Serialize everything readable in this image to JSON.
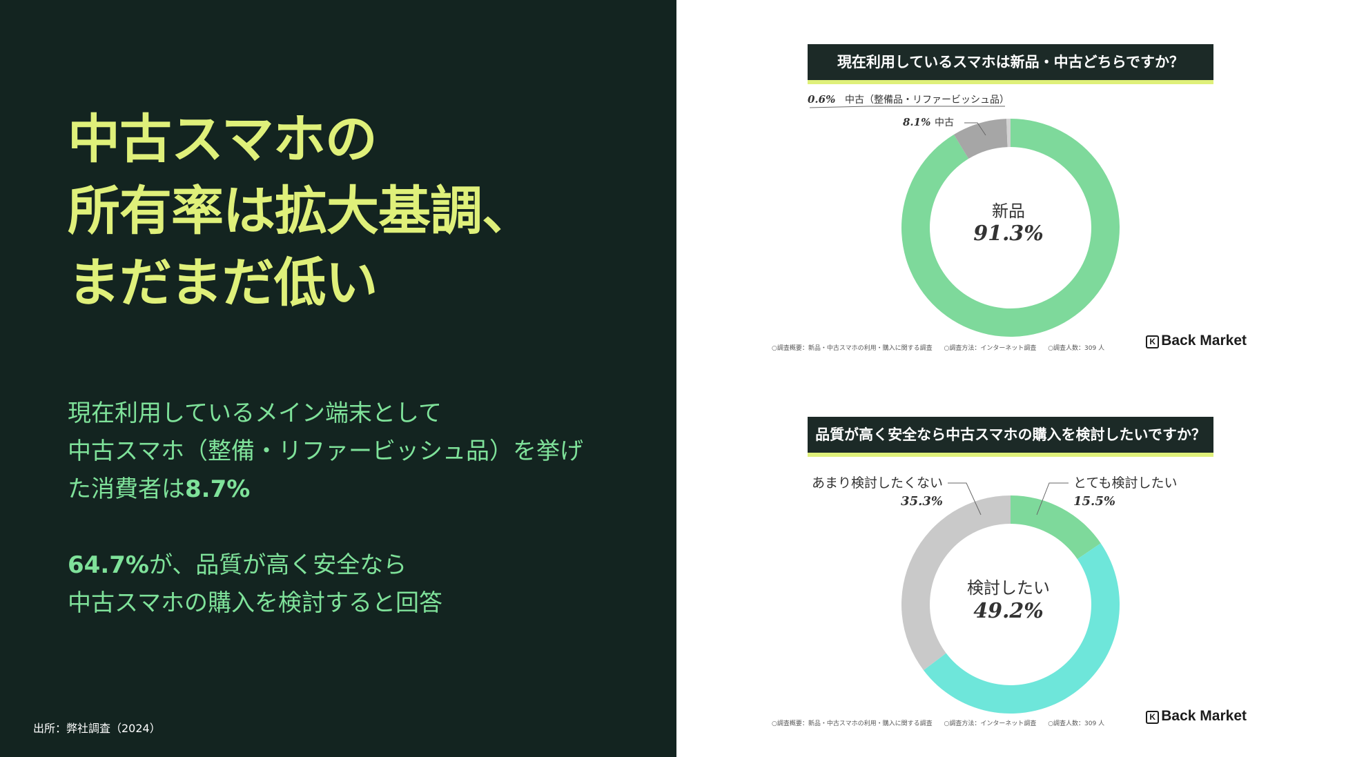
{
  "headline": [
    "中古スマホの",
    "所有率は拡大基調、",
    "まだまだ低い"
  ],
  "point1": {
    "lines": [
      "現在利用しているメイン端末として",
      "中古スマホ（整備・リファービッシュ品）を挙げ"
    ],
    "tail_prefix": "た消費者は",
    "tail_value": "8.7%"
  },
  "point2": {
    "value": "64.7%",
    "rest": "が、品質が高く安全なら",
    "line2": "中古スマホの購入を検討すると回答"
  },
  "source": "出所：弊社調査（2024）",
  "colors": {
    "bg_dark": "#132420",
    "headline": "#dff07a",
    "body": "#7fe29a"
  },
  "chart_data": [
    {
      "type": "pie",
      "title": "現在利用しているスマホは新品・中古どちらですか？",
      "center_label": "新品",
      "center_value": "91.3%",
      "slices": [
        {
          "label": "新品",
          "value": 91.3,
          "color": "#7ed99b"
        },
        {
          "label": "中古",
          "display": "8.1%",
          "value": 8.1,
          "color": "#a6a6a6"
        },
        {
          "label": "中古（整備品・リファービッシュ品）",
          "display": "0.6%",
          "value": 0.6,
          "color": "#d2d2d2"
        }
      ],
      "footer": [
        "○調査概要：新品・中古スマホの利用・購入に関する調査",
        "○調査方法：インターネット調査",
        "○調査人数：309 人"
      ],
      "logo": "Back Market"
    },
    {
      "type": "pie",
      "title": "品質が高く安全なら中古スマホの購入を検討したいですか？",
      "center_label": "検討したい",
      "center_value": "49.2%",
      "slices": [
        {
          "label": "とても検討したい",
          "display": "15.5%",
          "value": 15.5,
          "color": "#7ed99b"
        },
        {
          "label": "検討したい",
          "display": "49.2%",
          "value": 49.2,
          "color": "#6ee6da"
        },
        {
          "label": "あまり検討したくない",
          "display": "35.3%",
          "value": 35.3,
          "color": "#c9c9c9"
        }
      ],
      "footer": [
        "○調査概要：新品・中古スマホの利用・購入に関する調査",
        "○調査方法：インターネット調査",
        "○調査人数：309 人"
      ],
      "logo": "Back Market"
    }
  ]
}
